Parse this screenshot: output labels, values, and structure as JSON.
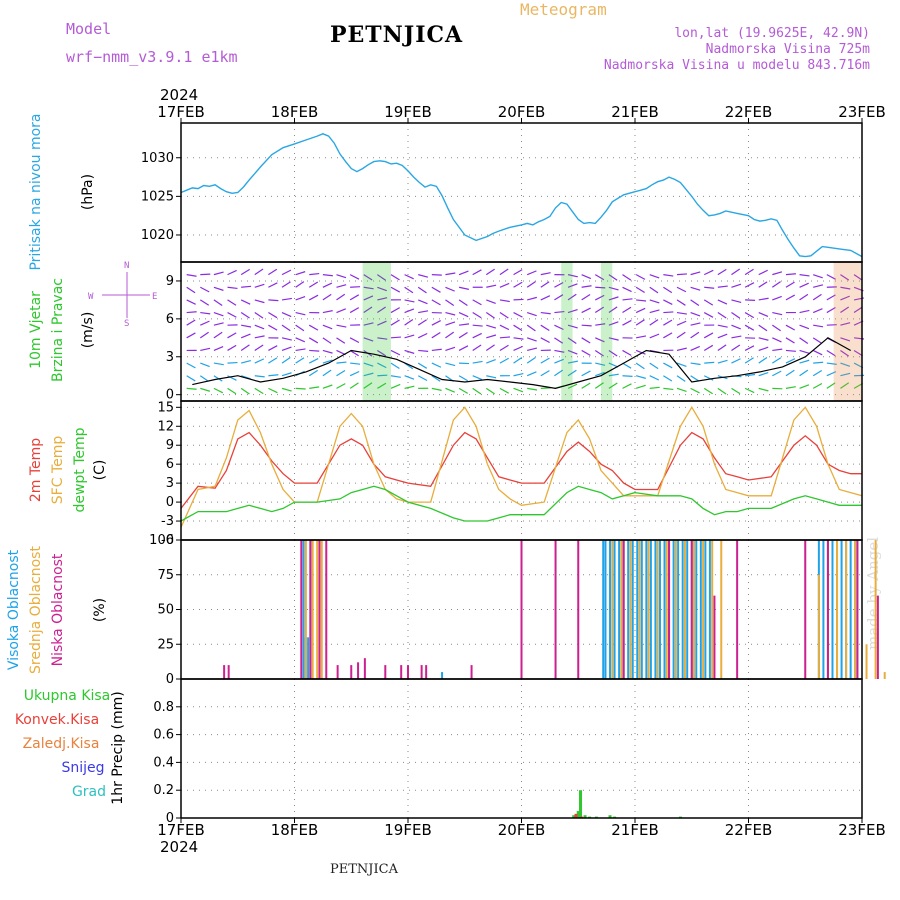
{
  "header": {
    "model_label": "Model",
    "model_name": "wrf−nmm_v3.9.1  e1km",
    "station": "PETNJICA",
    "chart_kind": "Meteogram",
    "coords": "lon,lat (19.9625E, 42.9N)",
    "elevation": "Nadmorska Visina 725m",
    "model_elevation": "Nadmorska Visina u modelu 843.716m"
  },
  "footer": {
    "station": "PETNJICA",
    "watermark": "made by Angel"
  },
  "axis": {
    "year_top": "2024",
    "year_bottom": "2024",
    "dates": [
      "17FEB",
      "18FEB",
      "19FEB",
      "20FEB",
      "21FEB",
      "22FEB",
      "23FEB"
    ],
    "x_range_days": [
      0,
      6
    ]
  },
  "colors": {
    "pressure": "#2aa7e3",
    "temp2m": "#e8403a",
    "sfc": "#e8ad3c",
    "dewpt": "#2ec72e",
    "high": "#1fa3e8",
    "mid": "#e8ad3c",
    "low": "#cc1f90",
    "total": "#2ec72e",
    "conv": "#e8403a",
    "frozen": "#e8823c",
    "snow": "#3a3ae8",
    "hail": "#2ec0c0",
    "wind_legend": "#b45bd6"
  },
  "chart_data": [
    {
      "type": "line",
      "panel": "pressure",
      "ylabel_name": "Pritisak na nivou mora",
      "ylabel_unit": "(hPa)",
      "ylim": [
        1016.5,
        1034.5
      ],
      "yticks": [
        1020,
        1025,
        1030
      ],
      "grid": true,
      "series": [
        {
          "x": [
            0,
            0.05,
            0.1,
            0.15,
            0.2,
            0.25,
            0.3,
            0.35,
            0.4,
            0.45,
            0.5,
            0.55,
            0.6,
            0.7,
            0.8,
            0.9,
            1,
            1.1,
            1.2,
            1.25,
            1.3,
            1.35,
            1.4,
            1.45,
            1.5,
            1.55,
            1.6,
            1.65,
            1.7,
            1.75,
            1.8,
            1.85,
            1.9,
            1.95,
            2,
            2.05,
            2.1,
            2.15,
            2.2,
            2.25,
            2.3,
            2.35,
            2.4,
            2.5,
            2.6,
            2.7,
            2.75,
            2.8,
            2.9,
            3,
            3.05,
            3.1,
            3.15,
            3.2,
            3.25,
            3.3,
            3.35,
            3.4,
            3.45,
            3.5,
            3.55,
            3.6,
            3.65,
            3.7,
            3.75,
            3.8,
            3.9,
            4,
            4.05,
            4.1,
            4.15,
            4.2,
            4.25,
            4.3,
            4.35,
            4.4,
            4.45,
            4.5,
            4.55,
            4.6,
            4.65,
            4.7,
            4.75,
            4.8,
            4.9,
            5,
            5.05,
            5.1,
            5.15,
            5.2,
            5.25,
            5.3,
            5.35,
            5.4,
            5.45,
            5.5,
            5.55,
            5.6,
            5.65,
            5.7,
            5.8,
            5.9,
            6
          ],
          "values": [
            1025.5,
            1025.8,
            1026.1,
            1026.0,
            1026.4,
            1026.3,
            1026.5,
            1026.0,
            1025.6,
            1025.4,
            1025.5,
            1026.2,
            1027.1,
            1028.8,
            1030.4,
            1031.3,
            1031.8,
            1032.3,
            1032.8,
            1033.1,
            1032.8,
            1031.9,
            1030.5,
            1029.5,
            1028.6,
            1028.2,
            1028.6,
            1029.1,
            1029.5,
            1029.6,
            1029.5,
            1029.2,
            1029.3,
            1029.0,
            1028.3,
            1027.5,
            1026.8,
            1026.2,
            1026.5,
            1026.3,
            1025.1,
            1023.5,
            1022.0,
            1020.0,
            1019.3,
            1019.8,
            1020.2,
            1020.5,
            1021.0,
            1021.3,
            1021.5,
            1021.3,
            1021.7,
            1022.0,
            1022.4,
            1023.5,
            1024.2,
            1024.0,
            1023.0,
            1022.0,
            1021.5,
            1021.6,
            1021.5,
            1022.3,
            1023.2,
            1024.3,
            1025.2,
            1025.6,
            1025.8,
            1026.0,
            1026.5,
            1026.9,
            1027.1,
            1027.5,
            1027.2,
            1026.8,
            1025.9,
            1025.0,
            1024.0,
            1023.2,
            1022.5,
            1022.6,
            1022.8,
            1023.1,
            1022.8,
            1022.5,
            1022.0,
            1021.8,
            1021.9,
            1022.1,
            1021.9,
            1020.6,
            1019.4,
            1018.3,
            1017.3,
            1017.2,
            1017.3,
            1017.9,
            1018.5,
            1018.4,
            1018.2,
            1018.0,
            1017.2
          ]
        }
      ]
    },
    {
      "type": "scatter",
      "panel": "wind",
      "ylabel_name": "10m Vjetar",
      "ylabel_sub": "Brzina i Pravac",
      "ylabel_unit": "(m/s)",
      "legend_n": "N",
      "legend_w": "W",
      "legend_e": "E",
      "legend_s": "S",
      "ylim": [
        -0.5,
        10.5
      ],
      "yticks": [
        0,
        3,
        6,
        9
      ],
      "grid": true,
      "barb_rows": [
        0.5,
        1.5,
        2.5,
        3.5,
        4.5,
        5.5,
        6.5,
        7.5,
        8.5,
        9.5
      ],
      "speed": {
        "x": [
          0.1,
          0.3,
          0.5,
          0.7,
          0.9,
          1.1,
          1.3,
          1.5,
          1.7,
          1.9,
          2.1,
          2.3,
          2.5,
          2.7,
          2.9,
          3.1,
          3.3,
          3.5,
          3.7,
          3.9,
          4.1,
          4.3,
          4.5,
          4.7,
          4.9,
          5.1,
          5.3,
          5.5,
          5.7,
          5.9
        ],
        "values": [
          0.8,
          1.2,
          1.5,
          1.0,
          1.3,
          1.8,
          2.5,
          3.5,
          3.2,
          2.8,
          2.0,
          1.2,
          1.0,
          1.2,
          1.0,
          0.8,
          0.5,
          1.0,
          1.5,
          2.5,
          3.5,
          3.2,
          1.0,
          1.3,
          1.5,
          1.8,
          2.2,
          3.0,
          4.5,
          3.5
        ]
      }
    },
    {
      "type": "line",
      "panel": "temperature",
      "ylabel_t2m": "2m Temp",
      "ylabel_sfc": "SFC Temp",
      "ylabel_dew": "dewpt Temp",
      "ylabel_unit": "(C)",
      "ylim": [
        -6,
        16
      ],
      "yticks": [
        -6,
        -3,
        0,
        3,
        6,
        9,
        12,
        15
      ],
      "grid": true,
      "x": [
        0,
        0.15,
        0.3,
        0.4,
        0.5,
        0.6,
        0.7,
        0.8,
        0.9,
        1.0,
        1.2,
        1.4,
        1.5,
        1.6,
        1.7,
        1.8,
        1.9,
        2.0,
        2.2,
        2.4,
        2.5,
        2.6,
        2.7,
        2.8,
        2.9,
        3.0,
        3.2,
        3.4,
        3.5,
        3.6,
        3.7,
        3.8,
        3.9,
        4.0,
        4.2,
        4.4,
        4.5,
        4.6,
        4.7,
        4.8,
        4.9,
        5.0,
        5.2,
        5.4,
        5.5,
        5.6,
        5.7,
        5.8,
        5.9,
        6.0
      ],
      "series": [
        {
          "key": "t2m",
          "values": [
            -1,
            2.5,
            2.2,
            5,
            10,
            11,
            9,
            6.5,
            4.5,
            3,
            3,
            9,
            10,
            9,
            6,
            4,
            3.5,
            3,
            2.5,
            9,
            11,
            10,
            7,
            4,
            3.5,
            3,
            3,
            8,
            9.5,
            8,
            6,
            5,
            3,
            2,
            2,
            9,
            11,
            10,
            7,
            4.5,
            4,
            3.5,
            4,
            9,
            10.5,
            9,
            6,
            5,
            4.5,
            4.5
          ]
        },
        {
          "key": "sfc",
          "values": [
            -4,
            2,
            2.5,
            7,
            13,
            14.5,
            11,
            6,
            2,
            0,
            0,
            12,
            14,
            12,
            6,
            2,
            0.5,
            0,
            0,
            13,
            15,
            12,
            6,
            2,
            0.5,
            -0.5,
            0,
            11,
            13,
            10,
            5,
            3,
            1,
            1,
            1,
            12,
            15,
            12,
            6,
            2,
            1.5,
            1,
            1,
            13,
            15,
            12,
            6,
            2,
            1.5,
            1
          ]
        },
        {
          "key": "dew",
          "values": [
            -3,
            -1.5,
            -1.5,
            -1.5,
            -1,
            -0.5,
            -1,
            -1.5,
            -1,
            0,
            0,
            0.5,
            1.5,
            2,
            2.5,
            2,
            1,
            0,
            -1,
            -2.5,
            -3,
            -3,
            -3,
            -2.5,
            -2,
            -2,
            -2,
            1.5,
            2.5,
            2,
            1.5,
            0.5,
            1,
            1.5,
            1,
            1,
            0.5,
            -1,
            -2,
            -1.5,
            -1.5,
            -1,
            -1,
            0.5,
            1,
            0.5,
            0,
            -0.5,
            -0.5,
            -0.5
          ]
        }
      ]
    },
    {
      "type": "bar",
      "panel": "clouds",
      "ylabel_high": "Visoka Oblacnost",
      "ylabel_mid": "Srednja Oblacnost",
      "ylabel_low": "Niska Oblacnost",
      "ylabel_unit": "(%)",
      "ylim": [
        0,
        100
      ],
      "yticks": [
        0,
        25,
        50,
        75,
        100
      ],
      "grid": true,
      "series": [
        {
          "key": "high",
          "x": [
            1.08,
            1.1,
            1.12,
            1.14,
            2.3,
            3.72,
            3.74,
            3.78,
            3.82,
            3.86,
            3.9,
            3.94,
            3.98,
            4.02,
            4.06,
            4.1,
            4.14,
            4.18,
            4.22,
            4.26,
            4.3,
            4.34,
            4.38,
            4.42,
            4.46,
            4.5,
            4.54,
            4.58,
            4.62,
            4.66,
            5.62,
            5.66,
            5.7,
            5.74,
            5.78,
            5.82,
            5.86,
            5.9,
            5.94
          ],
          "values": [
            100,
            30,
            30,
            100,
            5,
            100,
            100,
            100,
            100,
            100,
            100,
            100,
            100,
            100,
            100,
            100,
            100,
            100,
            100,
            100,
            100,
            100,
            100,
            100,
            100,
            100,
            100,
            100,
            100,
            100,
            100,
            100,
            100,
            100,
            100,
            100,
            100,
            100,
            100
          ]
        },
        {
          "key": "mid",
          "x": [
            1.1,
            1.16,
            1.2,
            1.24,
            3.8,
            3.88,
            3.96,
            4.04,
            4.12,
            4.2,
            4.28,
            4.36,
            4.44,
            4.52,
            4.6,
            4.68,
            4.76,
            5.62,
            5.7,
            5.78,
            5.86,
            5.94,
            6.04,
            6.12,
            6.2
          ],
          "values": [
            100,
            100,
            100,
            100,
            100,
            100,
            100,
            100,
            100,
            100,
            100,
            100,
            100,
            100,
            100,
            100,
            100,
            75,
            100,
            100,
            100,
            100,
            25,
            100,
            5
          ]
        },
        {
          "key": "low",
          "x": [
            0.38,
            0.42,
            1.06,
            1.14,
            1.22,
            1.28,
            1.38,
            1.5,
            1.56,
            1.62,
            1.8,
            1.94,
            2.0,
            2.12,
            2.16,
            2.56,
            3.0,
            3.3,
            3.5,
            3.9,
            4.3,
            4.5,
            4.7,
            4.9,
            5.5,
            5.7,
            5.96,
            6.14
          ],
          "values": [
            10,
            10,
            100,
            100,
            100,
            100,
            10,
            10,
            12,
            15,
            10,
            10,
            10,
            10,
            10,
            10,
            100,
            100,
            100,
            100,
            100,
            100,
            60,
            100,
            100,
            100,
            100,
            60
          ]
        }
      ]
    },
    {
      "type": "bar",
      "panel": "precip",
      "ylabel_name": "1hr Precip",
      "ylabel_unit": "(mm)",
      "legend": [
        "Ukupna  Kisa",
        "Konvek.Kisa",
        "Zaledj.Kisa",
        "Snijeg",
        "Grad"
      ],
      "ylim": [
        0,
        1.0
      ],
      "yticks": [
        0,
        0.2,
        0.4,
        0.6,
        0.8
      ],
      "grid": true,
      "series": [
        {
          "key": "total",
          "x": [
            3.46,
            3.5,
            3.52,
            3.56,
            3.6,
            3.66,
            3.78,
            3.82,
            4.4
          ],
          "values": [
            0.02,
            0.05,
            0.2,
            0.02,
            0.01,
            0.01,
            0.02,
            0.01,
            0.01
          ]
        },
        {
          "key": "conv",
          "x": [
            3.48,
            3.53
          ],
          "values": [
            0.03,
            0.01
          ]
        }
      ]
    }
  ]
}
